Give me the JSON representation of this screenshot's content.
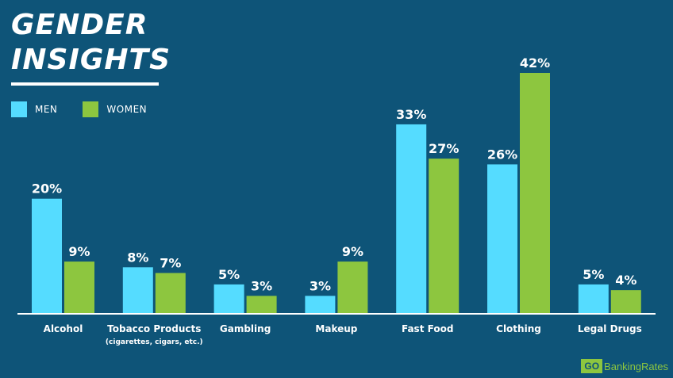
{
  "title_lines": [
    "GENDER",
    "INSIGHTS"
  ],
  "legend": [
    {
      "label": "MEN",
      "color": "#55dcff"
    },
    {
      "label": "WOMEN",
      "color": "#8dc63f"
    }
  ],
  "brand": {
    "box": "GO",
    "text": "BankingRates"
  },
  "chart_data": {
    "type": "bar",
    "title": "GENDER INSIGHTS",
    "categories": [
      "Alcohol",
      "Tobacco Products",
      "Gambling",
      "Makeup",
      "Fast Food",
      "Clothing",
      "Legal Drugs"
    ],
    "category_sublabels": [
      "",
      "(cigarettes, cigars, etc.)",
      "",
      "",
      "",
      "",
      ""
    ],
    "series": [
      {
        "name": "MEN",
        "color": "#55dcff",
        "values": [
          20,
          8,
          5,
          3,
          33,
          26,
          5
        ]
      },
      {
        "name": "WOMEN",
        "color": "#8dc63f",
        "values": [
          9,
          7,
          3,
          9,
          27,
          42,
          4
        ]
      }
    ],
    "value_suffix": "%",
    "ylim": [
      0,
      42
    ],
    "grid": false,
    "legend_position": "top-left"
  }
}
